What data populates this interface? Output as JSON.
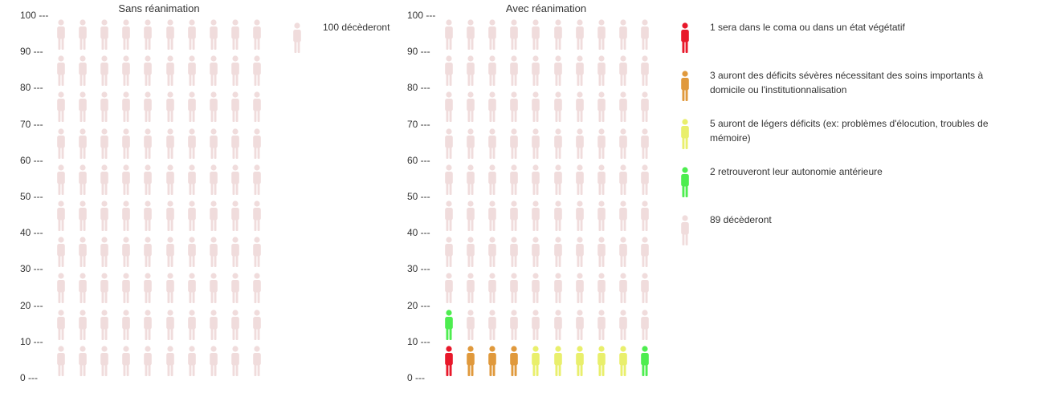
{
  "colors": {
    "deceased": "#f0dcdc",
    "coma": "#e8182a",
    "severe": "#e0993c",
    "mild": "#e9ef6c",
    "autonomy": "#4ded4f"
  },
  "icons": {
    "person": "person-icon"
  },
  "chart_data": [
    {
      "type": "pictogram",
      "title": "Sans réanimation",
      "ylim": [
        0,
        100
      ],
      "yticks": [
        "100 ---",
        "90 ---",
        "80 ---",
        "70 ---",
        "60 ---",
        "50 ---",
        "40 ---",
        "30 ---",
        "20 ---",
        "10 ---",
        "0 ---"
      ],
      "columns": 10,
      "unit_value": 1,
      "series": [
        {
          "key": "deceased",
          "color": "#f0dcdc",
          "count": 100,
          "label": "100 décèderont"
        }
      ]
    },
    {
      "type": "pictogram",
      "title": "Avec réanimation",
      "ylim": [
        0,
        100
      ],
      "yticks": [
        "100 ---",
        "90 ---",
        "80 ---",
        "70 ---",
        "60 ---",
        "50 ---",
        "40 ---",
        "30 ---",
        "20 ---",
        "10 ---",
        "0 ---"
      ],
      "columns": 10,
      "unit_value": 1,
      "series": [
        {
          "key": "coma",
          "color": "#e8182a",
          "count": 1,
          "label": "1 sera dans le coma ou dans un état végétatif"
        },
        {
          "key": "severe",
          "color": "#e0993c",
          "count": 3,
          "label": "3 auront des déficits sévères nécessitant des soins importants à domicile ou l'institutionnalisation"
        },
        {
          "key": "mild",
          "color": "#e9ef6c",
          "count": 5,
          "label": "5 auront de légers déficits (ex: problèmes d'élocution, troubles de mémoire)"
        },
        {
          "key": "autonomy",
          "color": "#4ded4f",
          "count": 2,
          "label": "2 retrouveront leur autonomie antérieure"
        },
        {
          "key": "deceased",
          "color": "#f0dcdc",
          "count": 89,
          "label": "89 décèderont"
        }
      ]
    }
  ]
}
